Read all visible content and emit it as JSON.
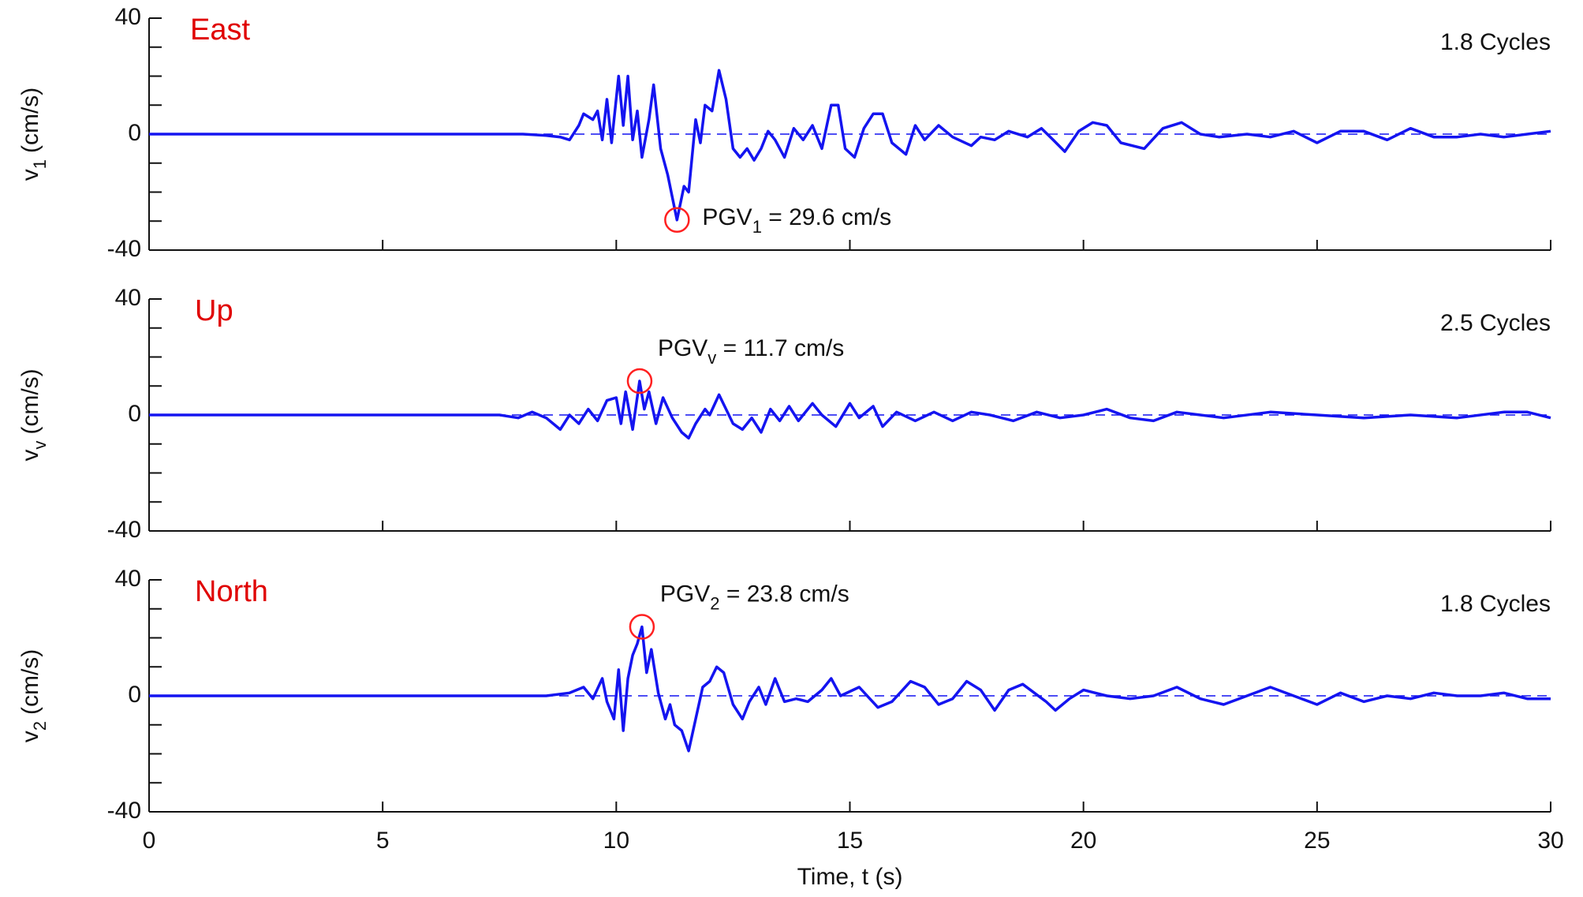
{
  "chart_data": [
    {
      "type": "line",
      "label": "East",
      "cycles": "1.8 Cycles",
      "ylabel": "v",
      "ylabel_sub": "1",
      "ylabel_unit": "(cm/s)",
      "annotation": "PGV",
      "annotation_sub": "1",
      "annotation_rest": " = 29.6 cm/s",
      "peak": {
        "x": 11.3,
        "y": -29.6
      },
      "peak_color": "#ff2020",
      "xlim": [
        0,
        30
      ],
      "xticks": [
        0,
        5,
        10,
        15,
        20,
        25,
        30
      ],
      "show_xtick_labels": false,
      "ylim": [
        -40,
        40
      ],
      "yticks": [
        -40,
        0,
        40
      ],
      "yminor": [
        -30,
        -20,
        -10,
        10,
        20,
        30
      ],
      "zero_line": "dashed",
      "series": [
        {
          "color": "#1414f0",
          "x": [
            0,
            7,
            8,
            8.5,
            8.8,
            9,
            9.2,
            9.3,
            9.5,
            9.6,
            9.7,
            9.8,
            9.9,
            10.05,
            10.15,
            10.25,
            10.35,
            10.45,
            10.55,
            10.7,
            10.8,
            10.95,
            11.1,
            11.3,
            11.45,
            11.55,
            11.7,
            11.8,
            11.9,
            12.05,
            12.2,
            12.35,
            12.5,
            12.65,
            12.8,
            12.95,
            13.1,
            13.25,
            13.4,
            13.6,
            13.8,
            14,
            14.2,
            14.4,
            14.6,
            14.75,
            14.9,
            15.1,
            15.3,
            15.5,
            15.7,
            15.9,
            16.2,
            16.4,
            16.6,
            16.9,
            17.2,
            17.6,
            17.8,
            18.1,
            18.4,
            18.8,
            19.1,
            19.35,
            19.6,
            19.9,
            20.2,
            20.5,
            20.8,
            21.3,
            21.7,
            22.1,
            22.5,
            22.9,
            23.5,
            24,
            24.5,
            25,
            25.5,
            26,
            26.5,
            27,
            27.5,
            28,
            28.5,
            29,
            29.5,
            30
          ],
          "values": [
            0,
            0,
            0,
            -0.5,
            -1,
            -2,
            3,
            7,
            5,
            8,
            -2,
            12,
            -3,
            20,
            3,
            20,
            -2,
            8,
            -8,
            5,
            17,
            -5,
            -14,
            -29.6,
            -18,
            -20,
            5,
            -3,
            10,
            8,
            22,
            12,
            -5,
            -8,
            -5,
            -9,
            -5,
            1,
            -2,
            -8,
            2,
            -2,
            3,
            -5,
            10,
            10,
            -5,
            -8,
            2,
            7,
            7,
            -3,
            -7,
            3,
            -2,
            3,
            -1,
            -4,
            -1,
            -2,
            1,
            -1,
            2,
            -2,
            -6,
            1,
            4,
            3,
            -3,
            -5,
            2,
            4,
            0,
            -1,
            0,
            -1,
            1,
            -3,
            1,
            1,
            -2,
            2,
            -1,
            -1,
            0,
            -1,
            0,
            1
          ]
        }
      ]
    },
    {
      "type": "line",
      "label": "Up",
      "cycles": "2.5 Cycles",
      "ylabel": "v",
      "ylabel_sub": "v",
      "ylabel_unit": "(cm/s)",
      "annotation": "PGV",
      "annotation_sub": "v",
      "annotation_rest": " = 11.7 cm/s",
      "peak": {
        "x": 10.5,
        "y": 11.7
      },
      "peak_color": "#ff2020",
      "xlim": [
        0,
        30
      ],
      "xticks": [
        0,
        5,
        10,
        15,
        20,
        25,
        30
      ],
      "show_xtick_labels": false,
      "ylim": [
        -40,
        40
      ],
      "yticks": [
        -40,
        0,
        40
      ],
      "yminor": [
        -30,
        -20,
        -10,
        10,
        20,
        30
      ],
      "zero_line": "dashed",
      "series": [
        {
          "color": "#1414f0",
          "x": [
            0,
            7.5,
            7.9,
            8.2,
            8.5,
            8.8,
            9,
            9.2,
            9.4,
            9.6,
            9.8,
            10,
            10.1,
            10.2,
            10.35,
            10.5,
            10.6,
            10.7,
            10.85,
            11,
            11.2,
            11.4,
            11.55,
            11.7,
            11.9,
            12,
            12.2,
            12.35,
            12.5,
            12.7,
            12.9,
            13.1,
            13.3,
            13.5,
            13.7,
            13.9,
            14.2,
            14.4,
            14.7,
            15,
            15.2,
            15.5,
            15.7,
            16,
            16.4,
            16.8,
            17.2,
            17.6,
            18,
            18.5,
            19,
            19.5,
            20,
            20.5,
            21,
            21.5,
            22,
            22.5,
            23,
            24,
            25,
            26,
            27,
            28,
            29,
            29.5,
            30
          ],
          "values": [
            0,
            0,
            -1,
            1,
            -1,
            -5,
            0,
            -3,
            2,
            -2,
            5,
            6,
            -3,
            8,
            -5,
            11.7,
            2,
            8,
            -3,
            6,
            -1,
            -6,
            -8,
            -3,
            2,
            0,
            7,
            2,
            -3,
            -5,
            -1,
            -6,
            2,
            -2,
            3,
            -2,
            4,
            0,
            -4,
            4,
            -1,
            3,
            -4,
            1,
            -2,
            1,
            -2,
            1,
            0,
            -2,
            1,
            -1,
            0,
            2,
            -1,
            -2,
            1,
            0,
            -1,
            1,
            0,
            -1,
            0,
            -1,
            1,
            1,
            -1
          ]
        }
      ]
    },
    {
      "type": "line",
      "label": "North",
      "cycles": "1.8 Cycles",
      "ylabel": "v",
      "ylabel_sub": "2",
      "ylabel_unit": "(cm/s)",
      "annotation": "PGV",
      "annotation_sub": "2",
      "annotation_rest": " = 23.8 cm/s",
      "peak": {
        "x": 10.55,
        "y": 23.8
      },
      "peak_color": "#ff2020",
      "xlim": [
        0,
        30
      ],
      "xticks": [
        0,
        5,
        10,
        15,
        20,
        25,
        30
      ],
      "show_xtick_labels": true,
      "xlabel": "Time, t (s)",
      "ylim": [
        -40,
        40
      ],
      "yticks": [
        -40,
        0,
        40
      ],
      "yminor": [
        -30,
        -20,
        -10,
        10,
        20,
        30
      ],
      "zero_line": "dashed",
      "series": [
        {
          "color": "#1414f0",
          "x": [
            0,
            7.5,
            8.5,
            9,
            9.3,
            9.5,
            9.7,
            9.8,
            9.95,
            10.05,
            10.15,
            10.25,
            10.35,
            10.45,
            10.55,
            10.65,
            10.75,
            10.9,
            11.05,
            11.15,
            11.25,
            11.4,
            11.55,
            11.7,
            11.85,
            12,
            12.15,
            12.3,
            12.5,
            12.7,
            12.85,
            13.05,
            13.2,
            13.4,
            13.6,
            13.85,
            14.1,
            14.4,
            14.6,
            14.8,
            15.2,
            15.6,
            15.9,
            16.3,
            16.6,
            16.9,
            17.2,
            17.5,
            17.8,
            18.1,
            18.4,
            18.7,
            19.2,
            19.4,
            19.7,
            20,
            20.5,
            21,
            21.5,
            22,
            22.5,
            23,
            23.5,
            24,
            24.5,
            25,
            25.5,
            26,
            26.5,
            27,
            27.5,
            28,
            28.5,
            29,
            29.5,
            30
          ],
          "values": [
            0,
            0,
            0,
            1,
            3,
            -1,
            6,
            -2,
            -8,
            9,
            -12,
            6,
            14,
            18,
            23.8,
            8,
            16,
            1,
            -8,
            -3,
            -10,
            -12,
            -19,
            -8,
            3,
            5,
            10,
            8,
            -3,
            -8,
            -2,
            3,
            -3,
            6,
            -2,
            -1,
            -2,
            2,
            6,
            0,
            3,
            -4,
            -2,
            5,
            3,
            -3,
            -1,
            5,
            2,
            -5,
            2,
            4,
            -2,
            -5,
            -1,
            2,
            0,
            -1,
            0,
            3,
            -1,
            -3,
            0,
            3,
            0,
            -3,
            1,
            -2,
            0,
            -1,
            1,
            0,
            0,
            1,
            -1,
            -1
          ]
        }
      ]
    }
  ]
}
